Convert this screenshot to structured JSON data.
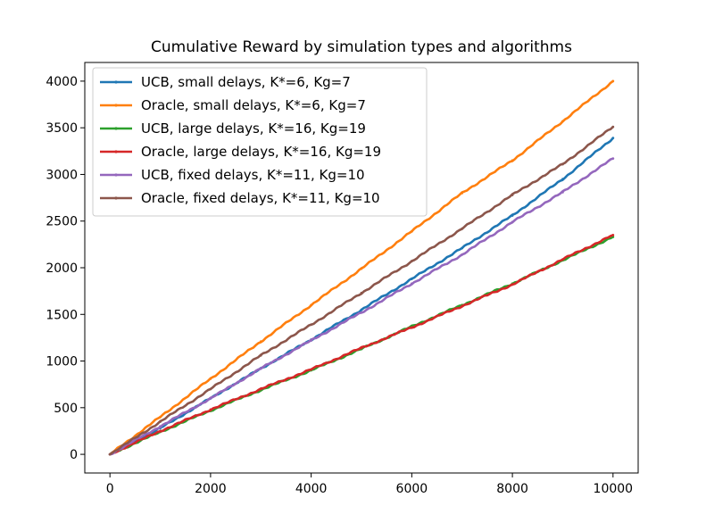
{
  "chart_data": {
    "type": "line",
    "title": "Cumulative Reward by simulation types and algorithms",
    "xlabel": "",
    "ylabel": "",
    "xlim": [
      -500,
      10500
    ],
    "ylim": [
      -200,
      4200
    ],
    "x_ticks": [
      0,
      2000,
      4000,
      6000,
      8000,
      10000
    ],
    "y_ticks": [
      0,
      500,
      1000,
      1500,
      2000,
      2500,
      3000,
      3500,
      4000
    ],
    "grid": false,
    "legend_position": "upper-left",
    "x": [
      0,
      1000,
      2000,
      3000,
      4000,
      5000,
      6000,
      7000,
      8000,
      9000,
      10000
    ],
    "series": [
      {
        "name": "UCB, small delays, K*=6, Kg=7",
        "color": "#1f77b4",
        "values": [
          0,
          280,
          600,
          920,
          1230,
          1550,
          1880,
          2210,
          2560,
          2950,
          3390
        ]
      },
      {
        "name": "Oracle, small delays, K*=6, Kg=7",
        "color": "#ff7f0e",
        "values": [
          0,
          400,
          810,
          1210,
          1600,
          1990,
          2390,
          2800,
          3150,
          3570,
          4000
        ]
      },
      {
        "name": "UCB, large delays, K*=16, Kg=19",
        "color": "#2ca02c",
        "values": [
          0,
          240,
          470,
          690,
          900,
          1130,
          1370,
          1600,
          1830,
          2080,
          2330
        ]
      },
      {
        "name": "Oracle, large delays, K*=16, Kg=19",
        "color": "#d62728",
        "values": [
          0,
          250,
          480,
          700,
          910,
          1140,
          1360,
          1590,
          1820,
          2090,
          2350
        ]
      },
      {
        "name": "UCB, fixed delays, K*=11, Kg=10",
        "color": "#9467bd",
        "values": [
          0,
          300,
          600,
          920,
          1220,
          1520,
          1830,
          2140,
          2490,
          2810,
          3170
        ]
      },
      {
        "name": "Oracle, fixed delays, K*=11, Kg=10",
        "color": "#8c564b",
        "values": [
          0,
          350,
          700,
          1060,
          1390,
          1730,
          2070,
          2420,
          2780,
          3110,
          3510
        ]
      }
    ]
  }
}
